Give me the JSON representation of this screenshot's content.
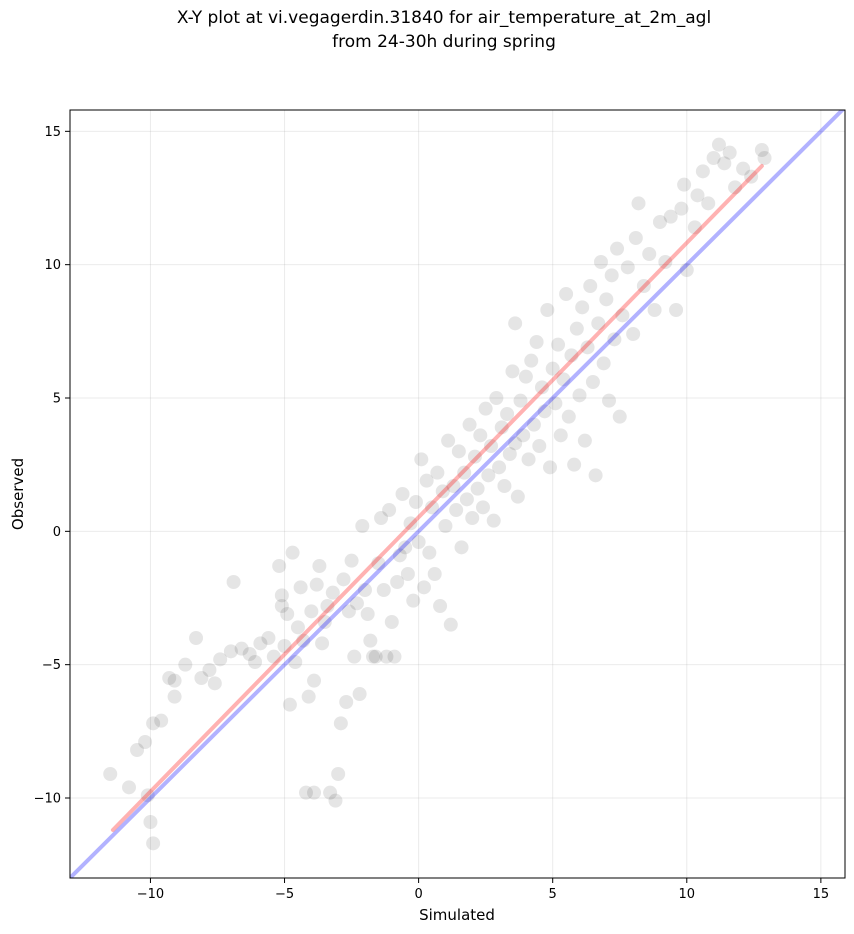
{
  "chart_data": {
    "type": "scatter",
    "title": "X-Y plot at vi.vegagerdin.31840 for air_temperature_at_2m_agl",
    "subtitle": "from 24-30h during spring",
    "xlabel": "Simulated",
    "ylabel": "Observed",
    "xlim": [
      -13.0,
      15.9
    ],
    "ylim": [
      -13.0,
      15.8
    ],
    "x_ticks": [
      -10,
      -5,
      0,
      5,
      10,
      15
    ],
    "y_ticks": [
      -10,
      -5,
      0,
      5,
      10,
      15
    ],
    "x_tick_labels": [
      "−10",
      "−5",
      "0",
      "5",
      "10",
      "15"
    ],
    "y_tick_labels": [
      "−10",
      "−5",
      "0",
      "5",
      "10",
      "15"
    ],
    "grid": true,
    "point_color": "#000000",
    "point_alpha": 0.1,
    "series": [
      {
        "type": "scatter",
        "points": [
          [
            -11.5,
            -9.1
          ],
          [
            -10.8,
            -9.6
          ],
          [
            -10.5,
            -8.2
          ],
          [
            -10.2,
            -7.9
          ],
          [
            -10.1,
            -9.9
          ],
          [
            -10.0,
            -10.9
          ],
          [
            -9.9,
            -11.7
          ],
          [
            -9.9,
            -7.2
          ],
          [
            -9.6,
            -7.1
          ],
          [
            -9.3,
            -5.5
          ],
          [
            -9.1,
            -5.6
          ],
          [
            -9.1,
            -6.2
          ],
          [
            -8.7,
            -5.0
          ],
          [
            -8.3,
            -4.0
          ],
          [
            -8.1,
            -5.5
          ],
          [
            -7.8,
            -5.2
          ],
          [
            -7.6,
            -5.7
          ],
          [
            -7.4,
            -4.8
          ],
          [
            -7.0,
            -4.5
          ],
          [
            -6.9,
            -1.9
          ],
          [
            -6.6,
            -4.4
          ],
          [
            -6.3,
            -4.6
          ],
          [
            -6.1,
            -4.9
          ],
          [
            -5.9,
            -4.2
          ],
          [
            -5.6,
            -4.0
          ],
          [
            -5.4,
            -4.7
          ],
          [
            -5.2,
            -1.3
          ],
          [
            -5.1,
            -2.4
          ],
          [
            -5.1,
            -2.8
          ],
          [
            -5.0,
            -4.3
          ],
          [
            -4.9,
            -3.1
          ],
          [
            -4.8,
            -6.5
          ],
          [
            -4.7,
            -0.8
          ],
          [
            -4.6,
            -4.9
          ],
          [
            -4.5,
            -3.6
          ],
          [
            -4.4,
            -2.1
          ],
          [
            -4.3,
            -4.1
          ],
          [
            -4.2,
            -9.8
          ],
          [
            -4.1,
            -6.2
          ],
          [
            -4.0,
            -3.0
          ],
          [
            -3.9,
            -9.8
          ],
          [
            -3.9,
            -5.6
          ],
          [
            -3.8,
            -2.0
          ],
          [
            -3.7,
            -1.3
          ],
          [
            -3.6,
            -4.2
          ],
          [
            -3.5,
            -3.4
          ],
          [
            -3.4,
            -2.8
          ],
          [
            -3.3,
            -9.8
          ],
          [
            -3.2,
            -2.3
          ],
          [
            -3.1,
            -10.1
          ],
          [
            -3.0,
            -9.1
          ],
          [
            -2.9,
            -7.2
          ],
          [
            -2.8,
            -1.8
          ],
          [
            -2.7,
            -6.4
          ],
          [
            -2.6,
            -3.0
          ],
          [
            -2.5,
            -1.1
          ],
          [
            -2.4,
            -4.7
          ],
          [
            -2.3,
            -2.7
          ],
          [
            -2.2,
            -6.1
          ],
          [
            -2.1,
            0.2
          ],
          [
            -2.0,
            -2.2
          ],
          [
            -1.9,
            -3.1
          ],
          [
            -1.8,
            -4.1
          ],
          [
            -1.7,
            -4.7
          ],
          [
            -1.6,
            -4.7
          ],
          [
            -1.5,
            -1.2
          ],
          [
            -1.4,
            0.5
          ],
          [
            -1.3,
            -2.2
          ],
          [
            -1.2,
            -4.7
          ],
          [
            -1.1,
            0.8
          ],
          [
            -1.0,
            -3.4
          ],
          [
            -0.9,
            -4.7
          ],
          [
            -0.8,
            -1.9
          ],
          [
            -0.7,
            -0.9
          ],
          [
            -0.6,
            1.4
          ],
          [
            -0.5,
            -0.6
          ],
          [
            -0.4,
            -1.6
          ],
          [
            -0.3,
            0.3
          ],
          [
            -0.2,
            -2.6
          ],
          [
            -0.1,
            1.1
          ],
          [
            0.0,
            -0.4
          ],
          [
            0.1,
            2.7
          ],
          [
            0.2,
            -2.1
          ],
          [
            0.3,
            1.9
          ],
          [
            0.4,
            -0.8
          ],
          [
            0.5,
            0.9
          ],
          [
            0.6,
            -1.6
          ],
          [
            0.7,
            2.2
          ],
          [
            0.8,
            -2.8
          ],
          [
            0.9,
            1.5
          ],
          [
            1.0,
            0.2
          ],
          [
            1.1,
            3.4
          ],
          [
            1.2,
            -3.5
          ],
          [
            1.3,
            1.7
          ],
          [
            1.4,
            0.8
          ],
          [
            1.5,
            3.0
          ],
          [
            1.6,
            -0.6
          ],
          [
            1.7,
            2.2
          ],
          [
            1.8,
            1.2
          ],
          [
            1.9,
            4.0
          ],
          [
            2.0,
            0.5
          ],
          [
            2.1,
            2.8
          ],
          [
            2.2,
            1.6
          ],
          [
            2.3,
            3.6
          ],
          [
            2.4,
            0.9
          ],
          [
            2.5,
            4.6
          ],
          [
            2.6,
            2.1
          ],
          [
            2.7,
            3.2
          ],
          [
            2.8,
            0.4
          ],
          [
            2.9,
            5.0
          ],
          [
            3.0,
            2.4
          ],
          [
            3.1,
            3.9
          ],
          [
            3.2,
            1.7
          ],
          [
            3.3,
            4.4
          ],
          [
            3.4,
            2.9
          ],
          [
            3.5,
            6.0
          ],
          [
            3.6,
            3.3
          ],
          [
            3.6,
            7.8
          ],
          [
            3.7,
            1.3
          ],
          [
            3.8,
            4.9
          ],
          [
            3.9,
            3.6
          ],
          [
            4.0,
            5.8
          ],
          [
            4.1,
            2.7
          ],
          [
            4.2,
            6.4
          ],
          [
            4.3,
            4.0
          ],
          [
            4.4,
            7.1
          ],
          [
            4.5,
            3.2
          ],
          [
            4.6,
            5.4
          ],
          [
            4.7,
            4.5
          ],
          [
            4.8,
            8.3
          ],
          [
            4.9,
            2.4
          ],
          [
            5.0,
            6.1
          ],
          [
            5.1,
            4.8
          ],
          [
            5.2,
            7.0
          ],
          [
            5.3,
            3.6
          ],
          [
            5.4,
            5.7
          ],
          [
            5.5,
            8.9
          ],
          [
            5.6,
            4.3
          ],
          [
            5.7,
            6.6
          ],
          [
            5.8,
            2.5
          ],
          [
            5.9,
            7.6
          ],
          [
            6.0,
            5.1
          ],
          [
            6.1,
            8.4
          ],
          [
            6.2,
            3.4
          ],
          [
            6.3,
            6.9
          ],
          [
            6.4,
            9.2
          ],
          [
            6.5,
            5.6
          ],
          [
            6.6,
            2.1
          ],
          [
            6.7,
            7.8
          ],
          [
            6.8,
            10.1
          ],
          [
            6.9,
            6.3
          ],
          [
            7.0,
            8.7
          ],
          [
            7.1,
            4.9
          ],
          [
            7.2,
            9.6
          ],
          [
            7.3,
            7.2
          ],
          [
            7.4,
            10.6
          ],
          [
            7.5,
            4.3
          ],
          [
            7.6,
            8.1
          ],
          [
            7.8,
            9.9
          ],
          [
            8.0,
            7.4
          ],
          [
            8.1,
            11.0
          ],
          [
            8.2,
            12.3
          ],
          [
            8.4,
            9.2
          ],
          [
            8.6,
            10.4
          ],
          [
            8.8,
            8.3
          ],
          [
            9.0,
            11.6
          ],
          [
            9.2,
            10.1
          ],
          [
            9.4,
            11.8
          ],
          [
            9.6,
            8.3
          ],
          [
            9.8,
            12.1
          ],
          [
            9.9,
            13.0
          ],
          [
            10.0,
            9.8
          ],
          [
            10.3,
            11.4
          ],
          [
            10.4,
            12.6
          ],
          [
            10.6,
            13.5
          ],
          [
            10.8,
            12.3
          ],
          [
            11.0,
            14.0
          ],
          [
            11.2,
            14.5
          ],
          [
            11.4,
            13.8
          ],
          [
            11.6,
            14.2
          ],
          [
            11.8,
            12.9
          ],
          [
            12.1,
            13.6
          ],
          [
            12.4,
            13.3
          ],
          [
            12.8,
            14.3
          ],
          [
            12.9,
            14.0
          ]
        ]
      },
      {
        "name": "",
        "type": "line",
        "color": "#0000ff",
        "alpha": 0.3,
        "points": [
          [
            -13.0,
            -13.0
          ],
          [
            15.9,
            15.9
          ]
        ]
      },
      {
        "name": "",
        "type": "line",
        "color": "#ff0000",
        "alpha": 0.3,
        "points": [
          [
            -11.4,
            -11.2
          ],
          [
            12.8,
            13.7
          ]
        ]
      }
    ]
  }
}
